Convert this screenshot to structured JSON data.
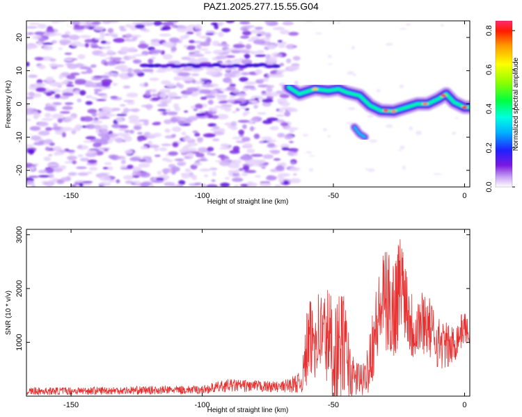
{
  "title": "PAZ1.2025.277.15.55.G04",
  "chart_data": [
    {
      "type": "heatmap",
      "title": "PAZ1.2025.277.15.55.G04",
      "xlabel": "Height of straight line (km)",
      "ylabel": "Frequency (Hz)",
      "xlim": [
        -167,
        2
      ],
      "ylim": [
        -25,
        25
      ],
      "xticks": [
        -150,
        -100,
        -50,
        0
      ],
      "yticks": [
        -20,
        -10,
        0,
        10,
        20
      ],
      "colorbar": {
        "label": "Normalized spectral amplitude",
        "range": [
          0,
          0.85
        ],
        "ticks": [
          0.0,
          0.2,
          0.4,
          0.6,
          0.8
        ]
      },
      "ridge": [
        {
          "x": -67,
          "y": 5
        },
        {
          "x": -63,
          "y": 3
        },
        {
          "x": -57,
          "y": 4.5
        },
        {
          "x": -52,
          "y": 4
        },
        {
          "x": -48,
          "y": 4.5
        },
        {
          "x": -45,
          "y": 3.5
        },
        {
          "x": -40,
          "y": 2.5
        },
        {
          "x": -36,
          "y": -0.5
        },
        {
          "x": -32,
          "y": -2
        },
        {
          "x": -27,
          "y": -2.2
        },
        {
          "x": -22,
          "y": -1
        },
        {
          "x": -18,
          "y": 0
        },
        {
          "x": -14,
          "y": 0
        },
        {
          "x": -10,
          "y": 1.5
        },
        {
          "x": -7,
          "y": 3
        },
        {
          "x": -4,
          "y": 0.5
        },
        {
          "x": 0,
          "y": -1
        },
        {
          "x": 2,
          "y": -1
        }
      ],
      "upper_band": {
        "y": 11.5,
        "x_range": [
          -122,
          -72
        ]
      },
      "side_blob": [
        {
          "x": -42,
          "y": -7
        },
        {
          "x": -40,
          "y": -9
        },
        {
          "x": -38,
          "y": -10
        }
      ]
    },
    {
      "type": "line",
      "xlabel": "Height of straight line (km)",
      "ylabel": "SNR (10 * v/v)",
      "xlim": [
        -167,
        2
      ],
      "ylim": [
        0,
        3100
      ],
      "xticks": [
        -150,
        -100,
        -50,
        0
      ],
      "yticks": [
        1000,
        2000,
        3000
      ],
      "series": [
        {
          "name": "SNR",
          "color": "#e83030",
          "envelope": [
            {
              "x": -167,
              "base": 90,
              "amp": 70
            },
            {
              "x": -100,
              "base": 120,
              "amp": 80
            },
            {
              "x": -90,
              "base": 200,
              "amp": 120
            },
            {
              "x": -70,
              "base": 170,
              "amp": 100
            },
            {
              "x": -62,
              "base": 260,
              "amp": 200
            },
            {
              "x": -60,
              "base": 900,
              "amp": 800
            },
            {
              "x": -56,
              "base": 1200,
              "amp": 800
            },
            {
              "x": -52,
              "base": 1100,
              "amp": 1000
            },
            {
              "x": -49,
              "base": 700,
              "amp": 1100
            },
            {
              "x": -46,
              "base": 1000,
              "amp": 1000
            },
            {
              "x": -43,
              "base": 350,
              "amp": 400
            },
            {
              "x": -38,
              "base": 300,
              "amp": 300
            },
            {
              "x": -36,
              "base": 800,
              "amp": 700
            },
            {
              "x": -31,
              "base": 1800,
              "amp": 900
            },
            {
              "x": -27,
              "base": 1600,
              "amp": 1100
            },
            {
              "x": -24,
              "base": 2200,
              "amp": 900
            },
            {
              "x": -20,
              "base": 1300,
              "amp": 700
            },
            {
              "x": -15,
              "base": 1400,
              "amp": 600
            },
            {
              "x": -10,
              "base": 1000,
              "amp": 500
            },
            {
              "x": -5,
              "base": 900,
              "amp": 400
            },
            {
              "x": 0,
              "base": 1300,
              "amp": 300
            },
            {
              "x": 2,
              "base": 1100,
              "amp": 200
            }
          ]
        }
      ]
    }
  ]
}
